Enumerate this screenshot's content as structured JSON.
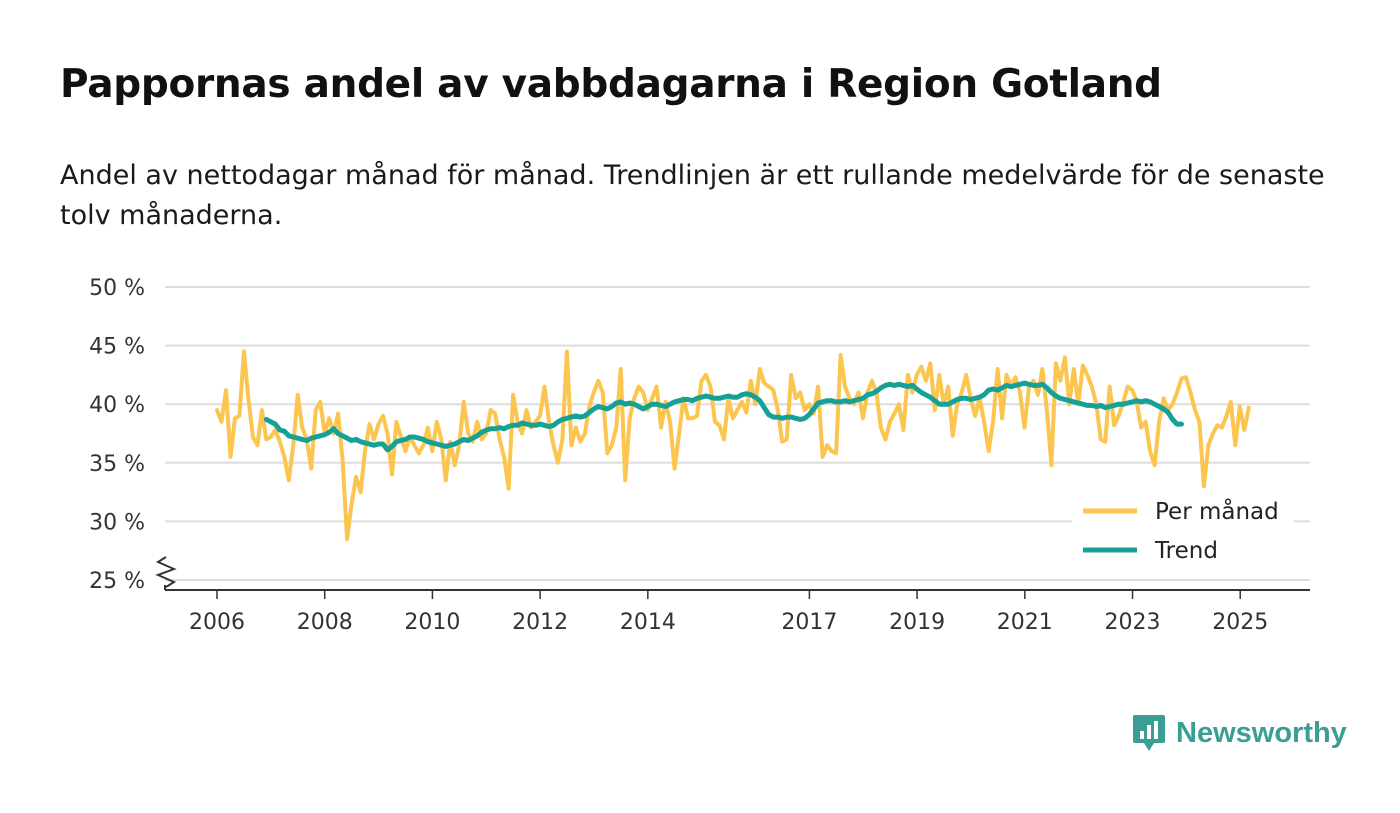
{
  "title": "Pappornas andel av vabbdagarna i Region Gotland",
  "subtitle": "Andel av nettodagar månad för månad. Trendlinjen är ett rullande medelvärde för de senaste tolv månaderna.",
  "brand": {
    "name": "Newsworthy",
    "color": "#3a9e95",
    "icon": "bar-chart-badge-icon"
  },
  "colors": {
    "monthly": "#fbc54f",
    "trend": "#17a095",
    "grid": "#dddddd",
    "axis": "#333333"
  },
  "chart_data": {
    "type": "line",
    "title": "Pappornas andel av vabbdagarna i Region Gotland",
    "xlabel": "",
    "ylabel": "",
    "ylim": [
      25,
      50
    ],
    "y_ticks": [
      50,
      45,
      40,
      35,
      30,
      25
    ],
    "y_tick_labels": [
      "50 %",
      "45 %",
      "40 %",
      "35 %",
      "30 %",
      "25 %"
    ],
    "x_ticks": [
      2006,
      2008,
      2010,
      2012,
      2014,
      2017,
      2019,
      2021,
      2023,
      2025
    ],
    "x_tick_labels": [
      "2006",
      "2008",
      "2010",
      "2012",
      "2014",
      "2017",
      "2019",
      "2021",
      "2023",
      "2025"
    ],
    "x_range": [
      2006.0,
      2025.33
    ],
    "y_axis_break": true,
    "legend": {
      "position": "bottom-right",
      "entries": [
        "Per månad",
        "Trend"
      ]
    },
    "series": [
      {
        "name": "Per månad",
        "color": "#fbc54f",
        "start": 2006.0,
        "step": 0.0833,
        "values": [
          39.5,
          38.5,
          41.2,
          35.5,
          38.8,
          39.0,
          44.5,
          40.5,
          37.2,
          36.5,
          39.5,
          37.0,
          37.2,
          37.8,
          36.8,
          35.5,
          33.5,
          36.5,
          40.8,
          38.0,
          37.0,
          34.5,
          39.5,
          40.2,
          37.5,
          38.8,
          37.5,
          39.2,
          35.2,
          28.5,
          31.5,
          33.8,
          32.5,
          36.0,
          38.3,
          37.0,
          38.3,
          39.0,
          37.5,
          34.0,
          38.5,
          37.2,
          36.0,
          37.2,
          36.5,
          35.8,
          36.5,
          38.0,
          36.0,
          38.5,
          37.0,
          33.5,
          36.8,
          34.8,
          36.5,
          40.2,
          37.5,
          36.8,
          38.5,
          37.0,
          37.5,
          39.5,
          39.2,
          37.0,
          35.5,
          32.8,
          40.8,
          38.5,
          37.5,
          39.5,
          38.0,
          38.5,
          39.0,
          41.5,
          38.5,
          36.5,
          35.0,
          37.0,
          44.5,
          36.5,
          38.0,
          36.8,
          37.5,
          39.8,
          41.0,
          42.0,
          41.0,
          35.8,
          36.5,
          38.0,
          43.0,
          33.5,
          38.8,
          40.5,
          41.5,
          41.0,
          39.5,
          40.5,
          41.5,
          38.0,
          40.2,
          38.5,
          34.5,
          37.5,
          40.5,
          38.8,
          38.8,
          39.0,
          42.0,
          42.5,
          41.5,
          38.5,
          38.2,
          37.0,
          40.5,
          38.8,
          39.5,
          40.2,
          39.3,
          42.0,
          40.0,
          43.0,
          41.8,
          41.5,
          41.2,
          39.5,
          36.8,
          37.0,
          42.5,
          40.5,
          41.0,
          39.5,
          40.0,
          39.2,
          41.5,
          35.5,
          36.5,
          36.0,
          35.8,
          44.2,
          41.5,
          40.5,
          40.0,
          41.0,
          38.8,
          41.0,
          42.0,
          41.0,
          38.0,
          37.0,
          38.5,
          39.2,
          40.0,
          37.8,
          42.5,
          41.0,
          42.5,
          43.2,
          42.0,
          43.5,
          39.5,
          42.5,
          40.0,
          41.5,
          37.3,
          40.0,
          41.0,
          42.5,
          40.5,
          39.0,
          40.5,
          38.5,
          36.0,
          38.5,
          43.0,
          38.8,
          42.5,
          41.5,
          42.3,
          41.0,
          38.0,
          41.5,
          42.0,
          40.8,
          43.0,
          39.5,
          34.8,
          43.5,
          42.0,
          44.0,
          40.0,
          43.0,
          40.0,
          43.3,
          42.5,
          41.5,
          40.0,
          37.0,
          36.8,
          41.5,
          38.2,
          39.0,
          40.2,
          41.5,
          41.2,
          40.3,
          38.0,
          38.5,
          36.0,
          34.8,
          38.5,
          40.5,
          39.5,
          40.0,
          41.0,
          42.2,
          42.3,
          41.0,
          39.5,
          38.5,
          33.0,
          36.5,
          37.5,
          38.2,
          38.0,
          39.0,
          40.2,
          36.5,
          39.8,
          37.8,
          39.7
        ]
      },
      {
        "name": "Trend",
        "color": "#17a095",
        "start": 2006.9167,
        "step": 0.0833,
        "values": [
          38.7,
          38.5,
          38.3,
          37.8,
          37.7,
          37.3,
          37.2,
          37.1,
          37.0,
          36.9,
          37.1,
          37.2,
          37.3,
          37.4,
          37.6,
          37.9,
          37.5,
          37.3,
          37.1,
          36.9,
          37.0,
          36.8,
          36.7,
          36.6,
          36.5,
          36.6,
          36.6,
          36.1,
          36.4,
          36.8,
          36.9,
          37.0,
          37.2,
          37.2,
          37.1,
          37.0,
          36.8,
          36.7,
          36.6,
          36.5,
          36.4,
          36.5,
          36.6,
          36.8,
          37.0,
          36.9,
          37.1,
          37.3,
          37.6,
          37.8,
          37.9,
          37.9,
          38.0,
          37.9,
          38.1,
          38.2,
          38.2,
          38.4,
          38.3,
          38.2,
          38.2,
          38.3,
          38.2,
          38.1,
          38.2,
          38.5,
          38.7,
          38.8,
          38.9,
          39.0,
          38.9,
          39.0,
          39.3,
          39.6,
          39.8,
          39.7,
          39.6,
          39.8,
          40.1,
          40.2,
          40.0,
          40.1,
          40.0,
          39.8,
          39.6,
          39.8,
          40.0,
          40.0,
          39.9,
          39.8,
          40.0,
          40.2,
          40.3,
          40.4,
          40.4,
          40.3,
          40.5,
          40.6,
          40.7,
          40.6,
          40.5,
          40.5,
          40.6,
          40.7,
          40.6,
          40.6,
          40.8,
          40.9,
          40.8,
          40.6,
          40.3,
          39.7,
          39.1,
          38.9,
          38.9,
          38.8,
          38.9,
          38.9,
          38.8,
          38.7,
          38.8,
          39.1,
          39.6,
          40.1,
          40.2,
          40.3,
          40.3,
          40.2,
          40.2,
          40.3,
          40.2,
          40.3,
          40.4,
          40.5,
          40.8,
          40.9,
          41.1,
          41.4,
          41.6,
          41.7,
          41.6,
          41.7,
          41.6,
          41.5,
          41.6,
          41.3,
          41.0,
          40.8,
          40.6,
          40.3,
          40.0,
          40.0,
          40.0,
          40.2,
          40.4,
          40.5,
          40.5,
          40.4,
          40.5,
          40.6,
          40.8,
          41.2,
          41.3,
          41.2,
          41.4,
          41.6,
          41.5,
          41.6,
          41.7,
          41.8,
          41.7,
          41.6,
          41.6,
          41.7,
          41.4,
          41.0,
          40.7,
          40.5,
          40.4,
          40.3,
          40.2,
          40.1,
          40.0,
          39.9,
          39.9,
          39.8,
          39.9,
          39.7,
          39.8,
          39.9,
          40.0,
          40.0,
          40.1,
          40.2,
          40.3,
          40.2,
          40.3,
          40.2,
          40.0,
          39.8,
          39.6,
          39.3,
          38.7,
          38.3,
          38.3
        ]
      }
    ]
  }
}
